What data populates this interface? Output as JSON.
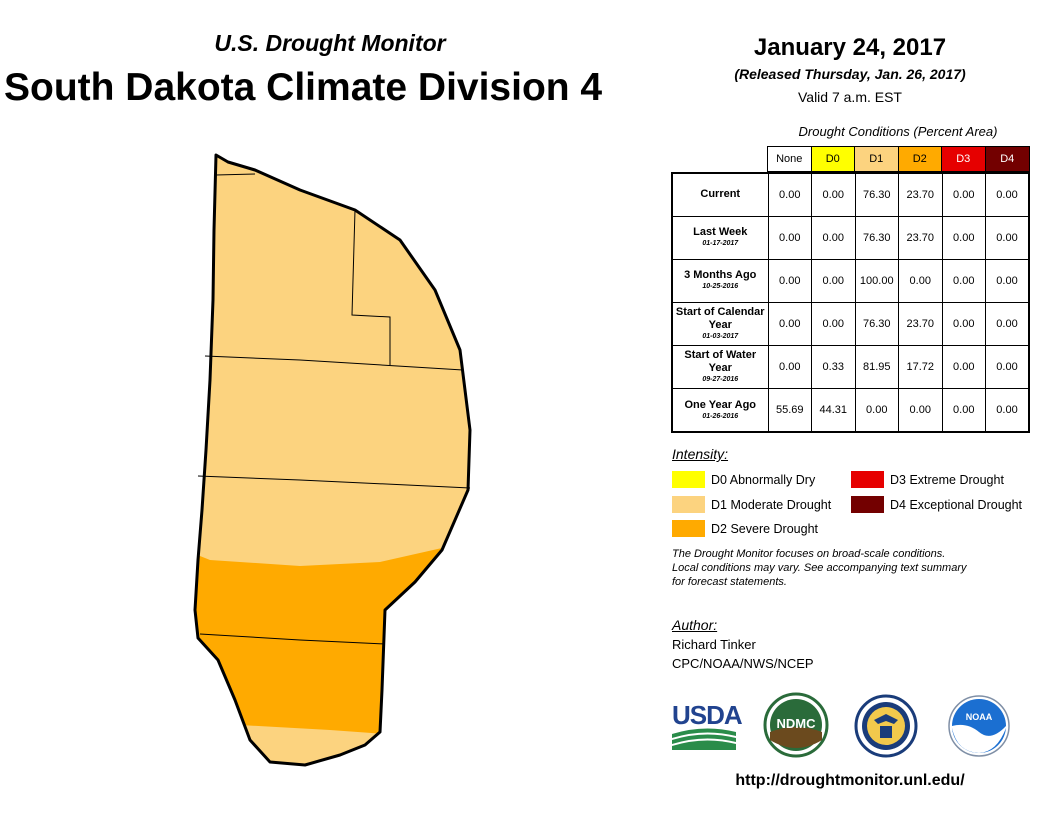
{
  "header": {
    "subtitle": "U.S. Drought Monitor",
    "title": "South Dakota Climate Division 4",
    "date": "January 24, 2017",
    "released": "(Released Thursday, Jan. 26, 2017)",
    "valid": "Valid 7 a.m. EST"
  },
  "table": {
    "caption": "Drought Conditions (Percent Area)",
    "columns": [
      "None",
      "D0",
      "D1",
      "D2",
      "D3",
      "D4"
    ],
    "rows": [
      {
        "label": "Current",
        "date": "",
        "values": [
          "0.00",
          "0.00",
          "76.30",
          "23.70",
          "0.00",
          "0.00"
        ]
      },
      {
        "label": "Last Week",
        "date": "01-17-2017",
        "values": [
          "0.00",
          "0.00",
          "76.30",
          "23.70",
          "0.00",
          "0.00"
        ]
      },
      {
        "label": "3 Months Ago",
        "date": "10-25-2016",
        "values": [
          "0.00",
          "0.00",
          "100.00",
          "0.00",
          "0.00",
          "0.00"
        ]
      },
      {
        "label": "Start of Calendar Year",
        "date": "01-03-2017",
        "values": [
          "0.00",
          "0.00",
          "76.30",
          "23.70",
          "0.00",
          "0.00"
        ]
      },
      {
        "label": "Start of Water Year",
        "date": "09-27-2016",
        "values": [
          "0.00",
          "0.33",
          "81.95",
          "17.72",
          "0.00",
          "0.00"
        ]
      },
      {
        "label": "One Year Ago",
        "date": "01-26-2016",
        "values": [
          "55.69",
          "44.31",
          "0.00",
          "0.00",
          "0.00",
          "0.00"
        ]
      }
    ]
  },
  "legend": {
    "title": "Intensity:",
    "items": [
      {
        "label": "D0 Abnormally Dry",
        "color": "#ffff00"
      },
      {
        "label": "D1 Moderate Drought",
        "color": "#fcd37f"
      },
      {
        "label": "D2 Severe Drought",
        "color": "#ffaa00"
      },
      {
        "label": "D3 Extreme Drought",
        "color": "#e60000"
      },
      {
        "label": "D4 Exceptional Drought",
        "color": "#730000"
      }
    ]
  },
  "disclaimer": {
    "line1": "The Drought Monitor focuses on broad-scale conditions.",
    "line2": "Local conditions may vary. See accompanying text summary",
    "line3": "for forecast statements."
  },
  "author": {
    "title": "Author:",
    "name": "Richard Tinker",
    "org": "CPC/NOAA/NWS/NCEP"
  },
  "logos": {
    "usda": "USDA",
    "ndmc": "NDMC",
    "noaa": "NOAA"
  },
  "colors": {
    "none": "#ffffff",
    "d0": "#ffff00",
    "d1": "#fcd37f",
    "d2": "#ffaa00",
    "d3": "#e60000",
    "d4": "#730000"
  },
  "url": "http://droughtmonitor.unl.edu/"
}
